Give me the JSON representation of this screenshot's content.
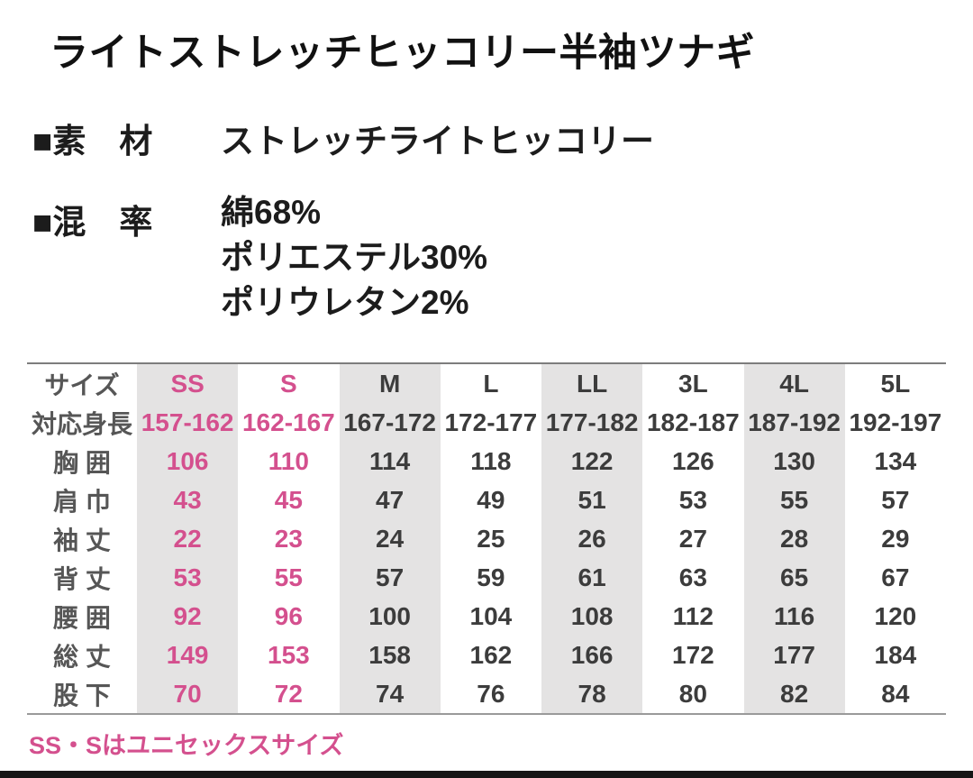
{
  "colors": {
    "accent_pink": "#d4508e",
    "shaded_column_bg": "#e4e3e3",
    "table_border": "#8a8a8a",
    "text_dark": "#1c1c1c",
    "table_text": "#3c3c3c",
    "bottom_bar": "#161616"
  },
  "product": {
    "title": "ライトストレッチヒッコリー半袖ツナギ",
    "material": {
      "label": "■素　材",
      "value": "ストレッチライトヒッコリー"
    },
    "blend": {
      "label": "■混　率",
      "values": [
        "綿68%",
        "ポリエステル30%",
        "ポリウレタン2%"
      ]
    },
    "footnote": "SS・Sはユニセックスサイズ"
  },
  "size_table": {
    "header_label": "サイズ",
    "sizes": [
      "SS",
      "S",
      "M",
      "L",
      "LL",
      "3L",
      "4L",
      "5L"
    ],
    "unisex_sizes": [
      "SS",
      "S"
    ],
    "rows": [
      {
        "label": "対応身長",
        "values": [
          "157-162",
          "162-167",
          "167-172",
          "172-177",
          "177-182",
          "182-187",
          "187-192",
          "192-197"
        ]
      },
      {
        "label": "胸 囲",
        "values": [
          "106",
          "110",
          "114",
          "118",
          "122",
          "126",
          "130",
          "134"
        ]
      },
      {
        "label": "肩 巾",
        "values": [
          "43",
          "45",
          "47",
          "49",
          "51",
          "53",
          "55",
          "57"
        ]
      },
      {
        "label": "袖 丈",
        "values": [
          "22",
          "23",
          "24",
          "25",
          "26",
          "27",
          "28",
          "29"
        ]
      },
      {
        "label": "背 丈",
        "values": [
          "53",
          "55",
          "57",
          "59",
          "61",
          "63",
          "65",
          "67"
        ]
      },
      {
        "label": "腰 囲",
        "values": [
          "92",
          "96",
          "100",
          "104",
          "108",
          "112",
          "116",
          "120"
        ]
      },
      {
        "label": "総 丈",
        "values": [
          "149",
          "153",
          "158",
          "162",
          "166",
          "172",
          "177",
          "184"
        ]
      },
      {
        "label": "股 下",
        "values": [
          "70",
          "72",
          "74",
          "76",
          "78",
          "80",
          "82",
          "84"
        ]
      }
    ]
  }
}
